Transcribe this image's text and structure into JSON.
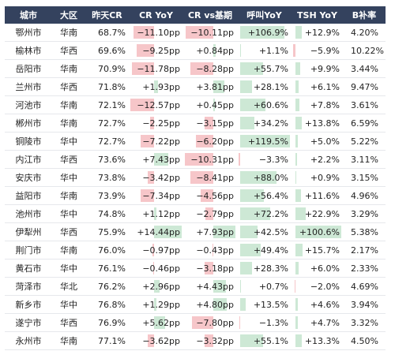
{
  "table": {
    "header": [
      "城市",
      "大区",
      "昨天CR",
      "CR YoY",
      "CR vs基期",
      "呼叫YoY",
      "TSH YoY",
      "B补率"
    ],
    "rows": [
      [
        "鄂州市",
        "华南",
        "68.7%",
        "−11.10pp",
        "−10.11pp",
        "+106.9%",
        "+12.9%",
        "4.20%"
      ],
      [
        "榆林市",
        "华西",
        "69.6%",
        "−9.25pp",
        "+0.84pp",
        "+1.1%",
        "−5.9%",
        "10.22%"
      ],
      [
        "岳阳市",
        "华南",
        "70.9%",
        "−11.78pp",
        "−8.28pp",
        "+55.7%",
        "+9.9%",
        "3.44%"
      ],
      [
        "兰州市",
        "华西",
        "71.8%",
        "+1.93pp",
        "+3.81pp",
        "+28.1%",
        "+6.1%",
        "9.47%"
      ],
      [
        "河池市",
        "华南",
        "72.1%",
        "−12.57pp",
        "+0.45pp",
        "+60.6%",
        "+7.8%",
        "3.61%"
      ],
      [
        "郴州市",
        "华南",
        "72.7%",
        "−2.25pp",
        "−3.15pp",
        "+34.2%",
        "+13.8%",
        "6.59%"
      ],
      [
        "铜陵市",
        "华中",
        "72.7%",
        "−7.22pp",
        "−6.20pp",
        "+119.5%",
        "+5.0%",
        "5.22%"
      ],
      [
        "内江市",
        "华西",
        "73.6%",
        "+7.43pp",
        "−10.31pp",
        "−3.3%",
        "+2.2%",
        "3.11%"
      ],
      [
        "安庆市",
        "华中",
        "73.8%",
        "−3.42pp",
        "−8.41pp",
        "+88.0%",
        "+0.9%",
        "3.15%"
      ],
      [
        "益阳市",
        "华南",
        "73.9%",
        "−7.34pp",
        "−4.56pp",
        "+56.4%",
        "+11.6%",
        "4.96%"
      ],
      [
        "池州市",
        "华中",
        "74.8%",
        "+1.12pp",
        "−2.79pp",
        "+72.2%",
        "+22.9%",
        "3.29%"
      ],
      [
        "伊犁州",
        "华西",
        "75.9%",
        "+14.44pp",
        "+7.93pp",
        "+42.5%",
        "+100.6%",
        "5.38%"
      ],
      [
        "荆门市",
        "华南",
        "76.0%",
        "−0.97pp",
        "−0.43pp",
        "+49.4%",
        "+15.7%",
        "2.17%"
      ],
      [
        "黄石市",
        "华中",
        "76.1%",
        "−0.46pp",
        "−3.18pp",
        "+28.3%",
        "+6.0%",
        "2.33%"
      ],
      [
        "菏泽市",
        "华北",
        "76.2%",
        "+2.96pp",
        "+4.43pp",
        "+0.7%",
        "−2.0%",
        "4.69%"
      ],
      [
        "新乡市",
        "华中",
        "76.8%",
        "+1.29pp",
        "+4.80pp",
        "+13.5%",
        "+4.6%",
        "3.94%"
      ],
      [
        "遂宁市",
        "华西",
        "76.9%",
        "+5.62pp",
        "−7.80pp",
        "−1.3%",
        "+4.7%",
        "3.32%"
      ],
      [
        "永州市",
        "华南",
        "77.1%",
        "−3.62pp",
        "−3.32pp",
        "+55.1%",
        "+13.3%",
        "4.50%"
      ]
    ]
  }
}
